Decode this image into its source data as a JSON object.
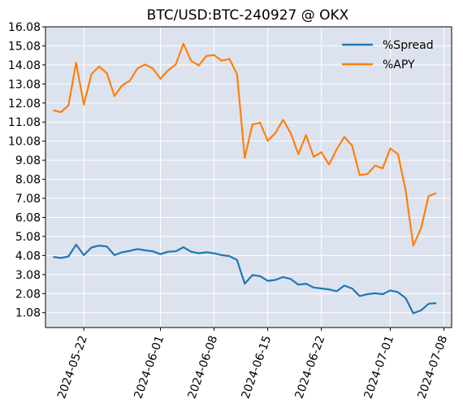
{
  "chart_data": {
    "type": "line",
    "title": "BTC/USD:BTC-240927 @ OKX",
    "xlabel": "",
    "ylabel": "",
    "x_axis": "date",
    "xlim": [
      "2024-05-17",
      "2024-07-09"
    ],
    "ylim": [
      0.3,
      16.08
    ],
    "ytick_labels": [
      "1.08",
      "2.08",
      "3.08",
      "4.08",
      "5.08",
      "6.08",
      "7.08",
      "8.08",
      "9.08",
      "10.08",
      "11.08",
      "12.08",
      "13.08",
      "14.08",
      "15.08",
      "16.08"
    ],
    "xtick_labels": [
      "2024-05-22",
      "2024-06-01",
      "2024-06-08",
      "2024-06-15",
      "2024-06-22",
      "2024-07-01",
      "2024-07-08"
    ],
    "grid": true,
    "legend_position": "top-right",
    "colors": {
      "spread": "#1f77b4",
      "apy": "#ff7f0e",
      "plot_bg": "#dde3ee",
      "grid": "#ffffff"
    },
    "series": [
      {
        "name": "%Spread",
        "color": "#1f77b4",
        "points": [
          [
            "2024-05-18",
            4.0
          ],
          [
            "2024-05-19",
            3.95
          ],
          [
            "2024-05-20",
            4.03
          ],
          [
            "2024-05-21",
            4.65
          ],
          [
            "2024-05-22",
            4.1
          ],
          [
            "2024-05-23",
            4.5
          ],
          [
            "2024-05-24",
            4.6
          ],
          [
            "2024-05-25",
            4.55
          ],
          [
            "2024-05-26",
            4.1
          ],
          [
            "2024-05-27",
            4.25
          ],
          [
            "2024-05-28",
            4.32
          ],
          [
            "2024-05-29",
            4.42
          ],
          [
            "2024-05-30",
            4.35
          ],
          [
            "2024-05-31",
            4.3
          ],
          [
            "2024-06-01",
            4.15
          ],
          [
            "2024-06-02",
            4.28
          ],
          [
            "2024-06-03",
            4.3
          ],
          [
            "2024-06-04",
            4.52
          ],
          [
            "2024-06-05",
            4.28
          ],
          [
            "2024-06-06",
            4.2
          ],
          [
            "2024-06-07",
            4.25
          ],
          [
            "2024-06-08",
            4.2
          ],
          [
            "2024-06-09",
            4.1
          ],
          [
            "2024-06-10",
            4.05
          ],
          [
            "2024-06-11",
            3.85
          ],
          [
            "2024-06-12",
            2.6
          ],
          [
            "2024-06-13",
            3.05
          ],
          [
            "2024-06-14",
            3.0
          ],
          [
            "2024-06-15",
            2.75
          ],
          [
            "2024-06-16",
            2.8
          ],
          [
            "2024-06-17",
            2.95
          ],
          [
            "2024-06-18",
            2.85
          ],
          [
            "2024-06-19",
            2.55
          ],
          [
            "2024-06-20",
            2.6
          ],
          [
            "2024-06-21",
            2.4
          ],
          [
            "2024-06-22",
            2.35
          ],
          [
            "2024-06-23",
            2.3
          ],
          [
            "2024-06-24",
            2.2
          ],
          [
            "2024-06-25",
            2.5
          ],
          [
            "2024-06-26",
            2.35
          ],
          [
            "2024-06-27",
            1.95
          ],
          [
            "2024-06-28",
            2.05
          ],
          [
            "2024-06-29",
            2.1
          ],
          [
            "2024-06-30",
            2.05
          ],
          [
            "2024-07-01",
            2.25
          ],
          [
            "2024-07-02",
            2.15
          ],
          [
            "2024-07-03",
            1.85
          ],
          [
            "2024-07-04",
            1.05
          ],
          [
            "2024-07-05",
            1.2
          ],
          [
            "2024-07-06",
            1.55
          ],
          [
            "2024-07-07",
            1.58
          ]
        ]
      },
      {
        "name": "%APY",
        "color": "#ff7f0e",
        "points": [
          [
            "2024-05-18",
            11.7
          ],
          [
            "2024-05-19",
            11.6
          ],
          [
            "2024-05-20",
            11.95
          ],
          [
            "2024-05-21",
            14.2
          ],
          [
            "2024-05-22",
            12.0
          ],
          [
            "2024-05-23",
            13.6
          ],
          [
            "2024-05-24",
            14.0
          ],
          [
            "2024-05-25",
            13.65
          ],
          [
            "2024-05-26",
            12.45
          ],
          [
            "2024-05-27",
            13.0
          ],
          [
            "2024-05-28",
            13.25
          ],
          [
            "2024-05-29",
            13.9
          ],
          [
            "2024-05-30",
            14.1
          ],
          [
            "2024-05-31",
            13.9
          ],
          [
            "2024-06-01",
            13.35
          ],
          [
            "2024-06-02",
            13.8
          ],
          [
            "2024-06-03",
            14.1
          ],
          [
            "2024-06-04",
            15.2
          ],
          [
            "2024-06-05",
            14.3
          ],
          [
            "2024-06-06",
            14.05
          ],
          [
            "2024-06-07",
            14.55
          ],
          [
            "2024-06-08",
            14.6
          ],
          [
            "2024-06-09",
            14.3
          ],
          [
            "2024-06-10",
            14.4
          ],
          [
            "2024-06-11",
            13.6
          ],
          [
            "2024-06-12",
            9.2
          ],
          [
            "2024-06-13",
            10.95
          ],
          [
            "2024-06-14",
            11.05
          ],
          [
            "2024-06-15",
            10.1
          ],
          [
            "2024-06-16",
            10.5
          ],
          [
            "2024-06-17",
            11.2
          ],
          [
            "2024-06-18",
            10.5
          ],
          [
            "2024-06-19",
            9.4
          ],
          [
            "2024-06-20",
            10.4
          ],
          [
            "2024-06-21",
            9.25
          ],
          [
            "2024-06-22",
            9.5
          ],
          [
            "2024-06-23",
            8.85
          ],
          [
            "2024-06-24",
            9.65
          ],
          [
            "2024-06-25",
            10.3
          ],
          [
            "2024-06-26",
            9.85
          ],
          [
            "2024-06-27",
            8.3
          ],
          [
            "2024-06-28",
            8.35
          ],
          [
            "2024-06-29",
            8.8
          ],
          [
            "2024-06-30",
            8.65
          ],
          [
            "2024-07-01",
            9.7
          ],
          [
            "2024-07-02",
            9.4
          ],
          [
            "2024-07-03",
            7.5
          ],
          [
            "2024-07-04",
            4.6
          ],
          [
            "2024-07-05",
            5.5
          ],
          [
            "2024-07-06",
            7.2
          ],
          [
            "2024-07-07",
            7.35
          ]
        ]
      }
    ]
  }
}
